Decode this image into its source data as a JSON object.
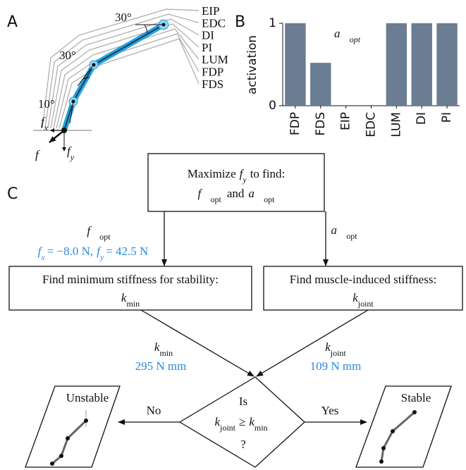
{
  "panel_labels": [
    "A",
    "B",
    "C"
  ],
  "finger": {
    "angles": [
      "30°",
      "30°",
      "10°"
    ],
    "muscles": [
      "EIP",
      "EDC",
      "DI",
      "PI",
      "LUM",
      "FDP",
      "FDS"
    ],
    "fx": {
      "sym": "f",
      "sub": "x"
    },
    "fy": {
      "sym": "f",
      "sub": "y"
    },
    "f": "f⃗"
  },
  "chart_data": {
    "type": "bar",
    "ylabel": "activation",
    "annotation": {
      "sym": "a⃗",
      "sub": "opt"
    },
    "categories": [
      "FDP",
      "FDS",
      "EIP",
      "EDC",
      "LUM",
      "DI",
      "PI"
    ],
    "values": [
      1,
      0.52,
      0,
      0,
      1,
      1,
      1
    ],
    "ylim": [
      0,
      1
    ],
    "yticks": [
      0,
      1
    ],
    "color": "#6a7d92"
  },
  "flow": {
    "start": {
      "pre": "Maximize",
      "sym": "f",
      "sub": "y",
      "post": "to find:",
      "sym1": "f⃗",
      "sub1": "opt",
      "mid": "and",
      "sym2": "a⃗",
      "sub2": "opt"
    },
    "left_edge": {
      "sym": "f⃗",
      "sub": "opt",
      "a_sym": "f",
      "a_sub": "x",
      "a_val": "= −8.0 N,",
      "b_sym": "f",
      "b_sub": "y",
      "b_val": "= 42.5 N"
    },
    "right_edge": {
      "sym": "a⃗",
      "sub": "opt"
    },
    "left_box": {
      "line1": "Find minimum stiffness for stability:",
      "sym": "k",
      "sub": "min"
    },
    "right_box": {
      "line1": "Find muscle-induced stiffness:",
      "sym": "k",
      "sub": "joint"
    },
    "kmin_edge": {
      "sym": "k",
      "sub": "min",
      "value": "295 N mm"
    },
    "kjoint_edge": {
      "sym": "k",
      "sub": "joint",
      "value": "109 N mm"
    },
    "decision": {
      "line1": "Is",
      "sym1": "k",
      "sub1": "joint",
      "op": "≥",
      "sym2": "k",
      "sub2": "min",
      "line3": "?"
    },
    "no": "No",
    "yes": "Yes",
    "unstable": "Unstable",
    "stable": "Stable"
  }
}
